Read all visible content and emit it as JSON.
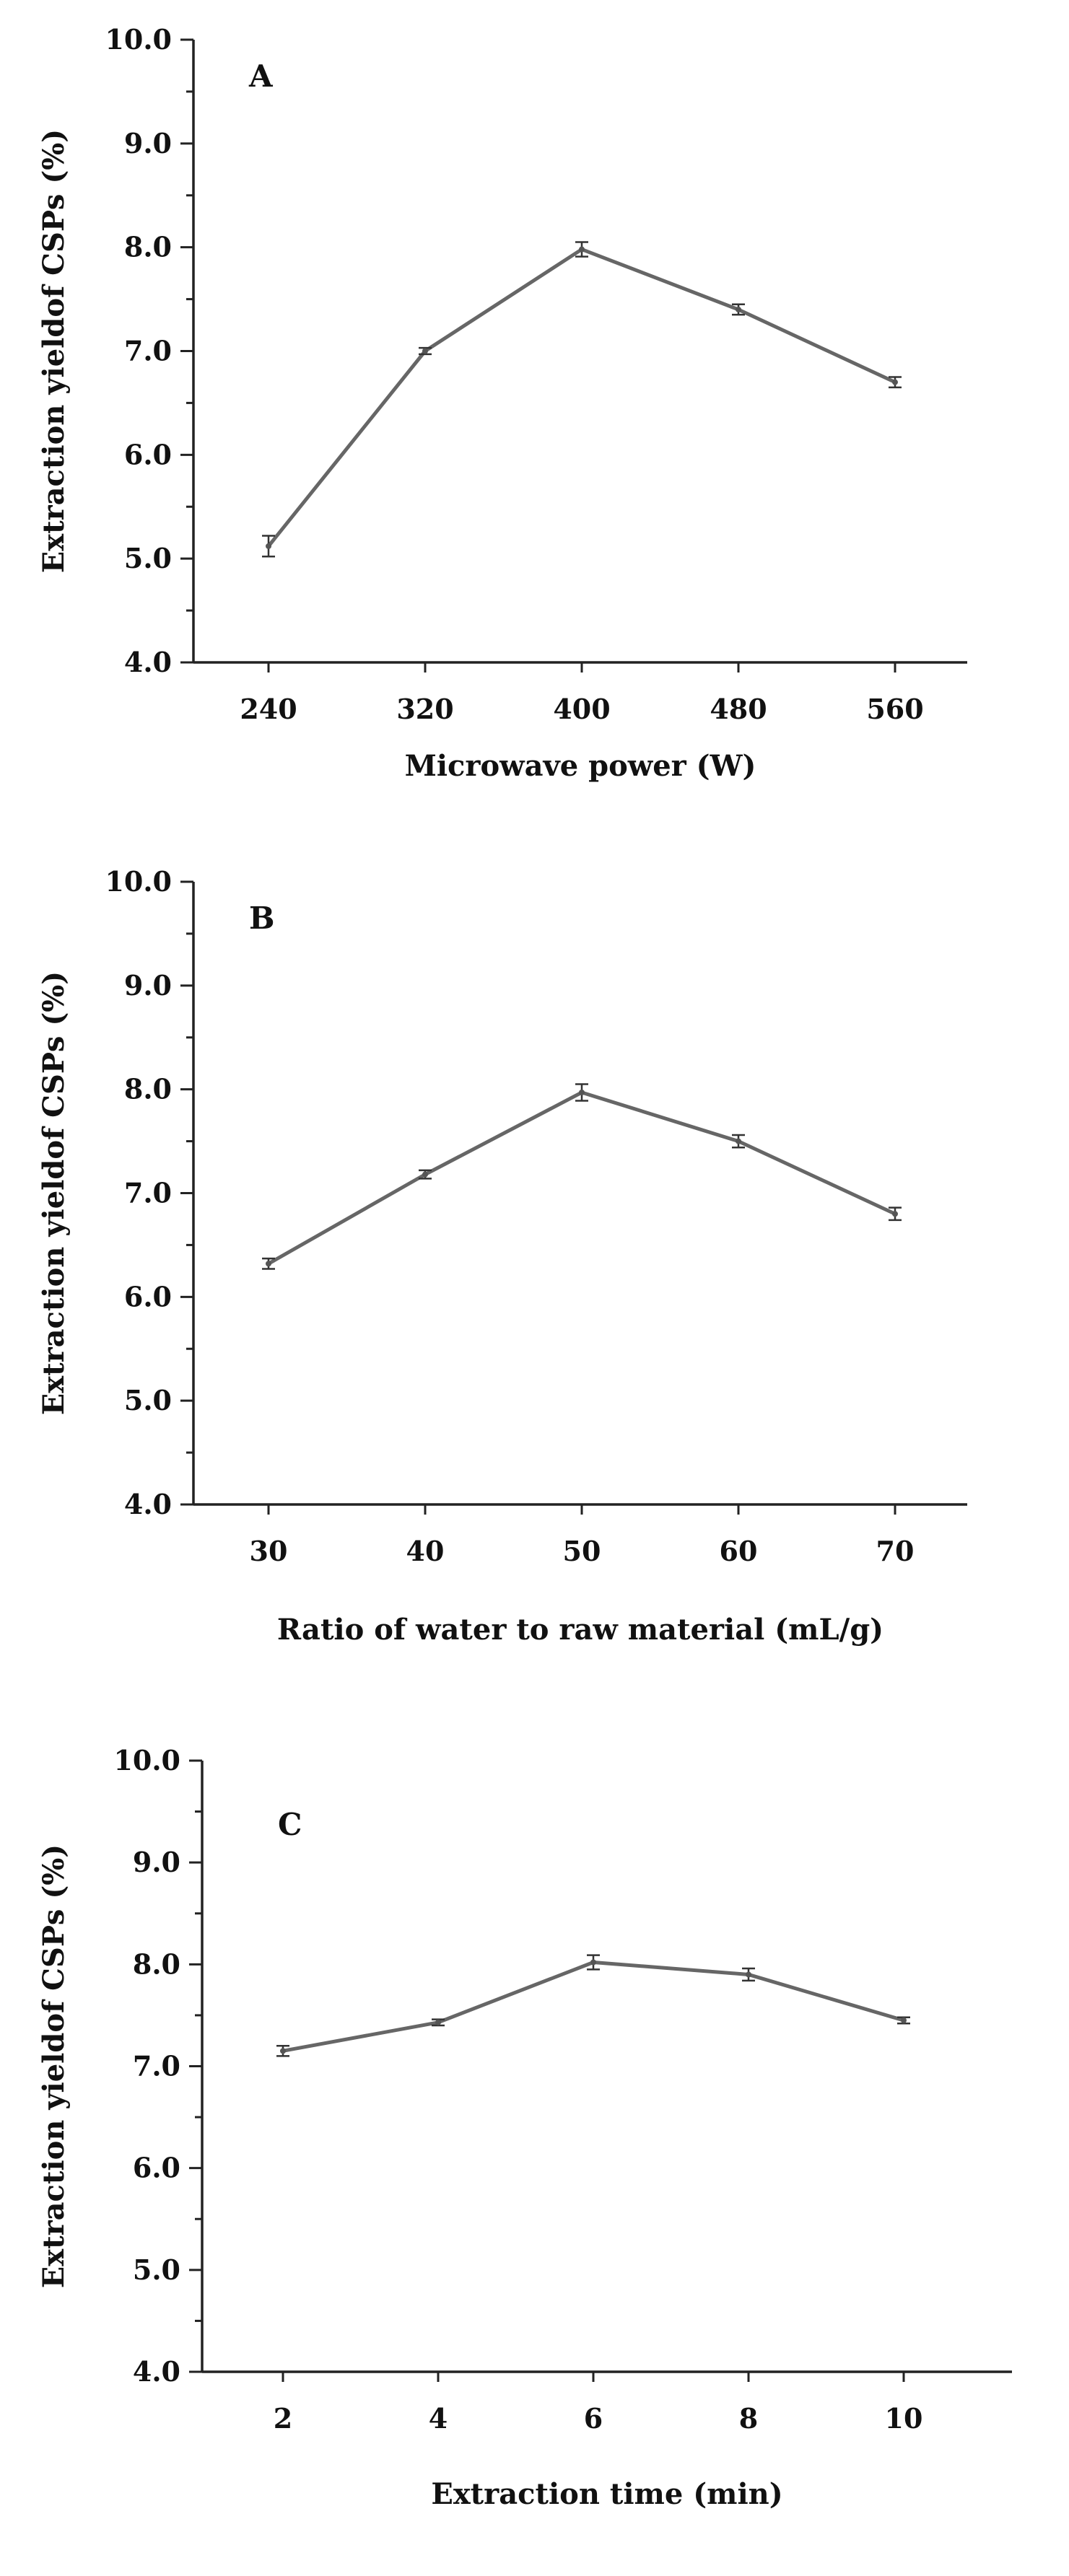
{
  "chart_data": [
    {
      "type": "line",
      "panel_label": "A",
      "xlabel": "Microwave power (W)",
      "ylabel": "Extraction yieldof CSPs (%)",
      "ylim": [
        4.0,
        10.0
      ],
      "yticks": [
        "4.0",
        "5.0",
        "6.0",
        "7.0",
        "8.0",
        "9.0",
        "10.0"
      ],
      "categories": [
        "240",
        "320",
        "400",
        "480",
        "560"
      ],
      "values": [
        5.12,
        7.0,
        7.98,
        7.4,
        6.7
      ],
      "errors": [
        0.1,
        0.03,
        0.07,
        0.05,
        0.05
      ],
      "grid": false
    },
    {
      "type": "line",
      "panel_label": "B",
      "xlabel": "Ratio of water to raw material (mL/g)",
      "ylabel": "Extraction yieldof CSPs (%)",
      "ylim": [
        4.0,
        10.0
      ],
      "yticks": [
        "4.0",
        "5.0",
        "6.0",
        "7.0",
        "8.0",
        "9.0",
        "10.0"
      ],
      "categories": [
        "30",
        "40",
        "50",
        "60",
        "70"
      ],
      "values": [
        6.32,
        7.18,
        7.97,
        7.5,
        6.8
      ],
      "errors": [
        0.05,
        0.04,
        0.08,
        0.06,
        0.06
      ],
      "grid": false
    },
    {
      "type": "line",
      "panel_label": "C",
      "xlabel": "Extraction time (min)",
      "ylabel": "Extraction yieldof CSPs (%)",
      "ylim": [
        4.0,
        10.0
      ],
      "yticks": [
        "4.0",
        "5.0",
        "6.0",
        "7.0",
        "8.0",
        "9.0",
        "10.0"
      ],
      "categories": [
        "2",
        "4",
        "6",
        "8",
        "10"
      ],
      "values": [
        7.15,
        7.43,
        8.02,
        7.9,
        7.45
      ],
      "errors": [
        0.05,
        0.03,
        0.07,
        0.06,
        0.03
      ],
      "grid": false
    }
  ]
}
